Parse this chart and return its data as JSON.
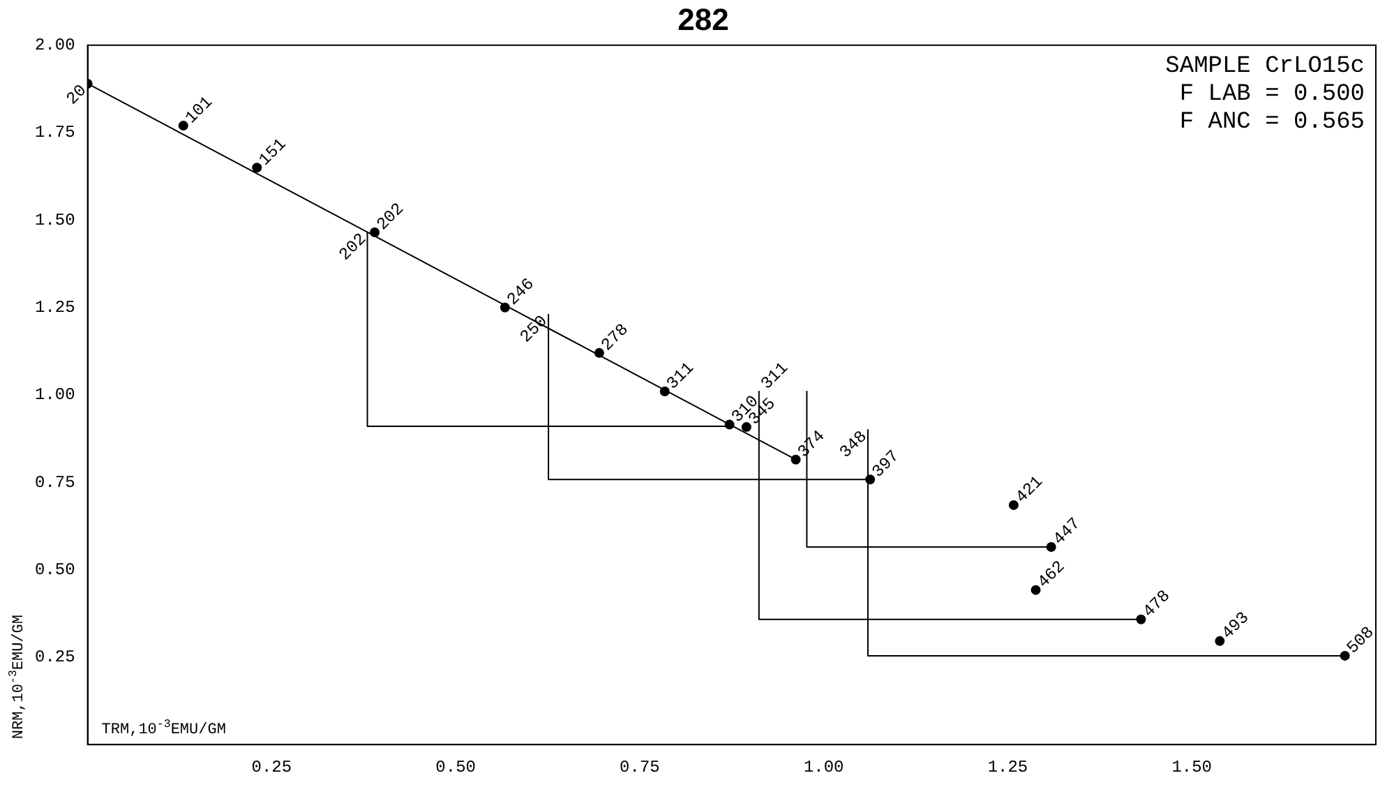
{
  "chart_data": {
    "type": "scatter",
    "title": "282",
    "xlabel": "TRM,10$^{-3}$EMU/GM",
    "ylabel": "NRM,10$^{-3}$EMU/GM",
    "xlim": [
      0,
      1.75
    ],
    "ylim": [
      0,
      2
    ],
    "xticks": [
      {
        "value": 0.25,
        "label": "0.25"
      },
      {
        "value": 0.5,
        "label": "0.50"
      },
      {
        "value": 0.75,
        "label": "0.75"
      },
      {
        "value": 1,
        "label": "1.00"
      },
      {
        "value": 1.25,
        "label": "1.25"
      },
      {
        "value": 1.5,
        "label": "1.50"
      }
    ],
    "yticks": [
      {
        "value": 0.25,
        "label": "0.25"
      },
      {
        "value": 0.5,
        "label": "0.50"
      },
      {
        "value": 0.75,
        "label": "0.75"
      },
      {
        "value": 1,
        "label": "1.00"
      },
      {
        "value": 1.25,
        "label": "1.25"
      },
      {
        "value": 1.5,
        "label": "1.50"
      },
      {
        "value": 1.75,
        "label": "1.75"
      },
      {
        "value": 2,
        "label": "2.00"
      }
    ],
    "grid": false,
    "legend": false,
    "series": [
      {
        "marker": "circle",
        "color": "#000000",
        "x": [
          0,
          0.13,
          0.23,
          0.39,
          0.567,
          0.695,
          0.784,
          0.872,
          0.895,
          0.962,
          1.063,
          1.258,
          1.309,
          1.288,
          1.431,
          1.538,
          1.708
        ],
        "values": [
          1.89,
          1.77,
          1.65,
          1.465,
          1.25,
          1.12,
          1.01,
          0.915,
          0.908,
          0.815,
          0.758,
          0.685,
          0.565,
          0.442,
          0.358,
          0.296,
          0.254
        ]
      },
      {
        "type": "line",
        "marker": "none",
        "color": "#000000",
        "x": [
          0,
          0.962
        ],
        "values": [
          1.89,
          0.815
        ]
      },
      {
        "type": "line",
        "marker": "none",
        "color": "#000000",
        "x": [
          0.38,
          0.38,
          0.872
        ],
        "values": [
          1.465,
          0.91,
          0.91
        ]
      },
      {
        "type": "line",
        "marker": "none",
        "color": "#000000",
        "x": [
          0.626,
          0.626,
          1.063
        ],
        "values": [
          1.23,
          0.758,
          0.758
        ]
      },
      {
        "type": "line",
        "marker": "none",
        "color": "#000000",
        "x": [
          0.912,
          0.912,
          1.431
        ],
        "values": [
          1.01,
          0.358,
          0.358
        ]
      },
      {
        "type": "line",
        "marker": "none",
        "color": "#000000",
        "x": [
          0.977,
          0.977,
          1.309
        ],
        "values": [
          1.01,
          0.565,
          0.565
        ]
      },
      {
        "type": "line",
        "marker": "none",
        "color": "#000000",
        "x": [
          1.06,
          1.06,
          1.708
        ],
        "values": [
          0.9,
          0.254,
          0.254
        ]
      }
    ],
    "annotations": [
      {
        "text": "20",
        "x": 0,
        "y": 1.89
      },
      {
        "text": "101",
        "x": 0.13,
        "y": 1.77
      },
      {
        "text": "151",
        "x": 0.23,
        "y": 1.65
      },
      {
        "text": "202",
        "x": 0.39,
        "y": 1.465
      },
      {
        "text": "246",
        "x": 0.567,
        "y": 1.25
      },
      {
        "text": "278",
        "x": 0.695,
        "y": 1.12
      },
      {
        "text": "311",
        "x": 0.784,
        "y": 1.01
      },
      {
        "text": "310",
        "x": 0.872,
        "y": 0.915
      },
      {
        "text": "345",
        "x": 0.895,
        "y": 0.908
      },
      {
        "text": "374",
        "x": 0.962,
        "y": 0.815
      },
      {
        "text": "397",
        "x": 1.063,
        "y": 0.758
      },
      {
        "text": "421",
        "x": 1.258,
        "y": 0.685
      },
      {
        "text": "447",
        "x": 1.309,
        "y": 0.565
      },
      {
        "text": "462",
        "x": 1.288,
        "y": 0.442
      },
      {
        "text": "478",
        "x": 1.431,
        "y": 0.358
      },
      {
        "text": "493",
        "x": 1.538,
        "y": 0.296
      },
      {
        "text": "508",
        "x": 1.708,
        "y": 0.254
      },
      {
        "text": "202",
        "x": 0.38,
        "y": 1.465
      },
      {
        "text": "250",
        "x": 0.626,
        "y": 1.23
      },
      {
        "text": "311",
        "x": 0.912,
        "y": 1.01
      },
      {
        "text": "348",
        "x": 1.06,
        "y": 0.9
      },
      "SAMPLE CrLO15c",
      "F LAB = 0.500",
      "F ANC = 0.565"
    ]
  }
}
